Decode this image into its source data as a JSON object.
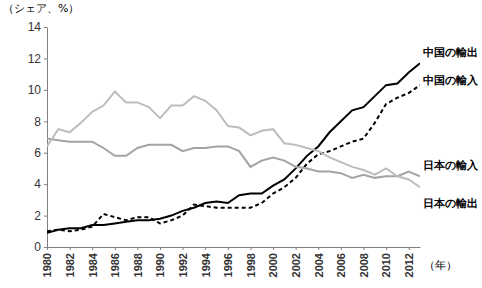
{
  "chart_data": {
    "type": "line",
    "y_label": "（シェア、%）",
    "x_label": "（年）",
    "x": [
      1980,
      1981,
      1982,
      1983,
      1984,
      1985,
      1986,
      1987,
      1988,
      1989,
      1990,
      1991,
      1992,
      1993,
      1994,
      1995,
      1996,
      1997,
      1998,
      1999,
      2000,
      2001,
      2002,
      2003,
      2004,
      2005,
      2006,
      2007,
      2008,
      2009,
      2010,
      2011,
      2012,
      2013
    ],
    "xlim": [
      1980,
      2013
    ],
    "xticks": [
      1980,
      1982,
      1984,
      1986,
      1988,
      1990,
      1992,
      1994,
      1996,
      1998,
      2000,
      2002,
      2004,
      2006,
      2008,
      2010,
      2012
    ],
    "ylim": [
      0,
      14
    ],
    "yticks": [
      0,
      2,
      4,
      6,
      8,
      10,
      12,
      14
    ],
    "grid": false,
    "series": [
      {
        "name": "中国の輸出",
        "color": "#000000",
        "line_style": "solid",
        "values": [
          0.9,
          1.1,
          1.2,
          1.2,
          1.4,
          1.4,
          1.5,
          1.6,
          1.7,
          1.7,
          1.8,
          2.0,
          2.3,
          2.5,
          2.8,
          2.9,
          2.8,
          3.3,
          3.4,
          3.4,
          3.9,
          4.3,
          5.0,
          5.8,
          6.4,
          7.3,
          8.0,
          8.7,
          8.9,
          9.6,
          10.3,
          10.4,
          11.1,
          11.7
        ]
      },
      {
        "name": "中国の輸入",
        "color": "#000000",
        "line_style": "dashed",
        "values": [
          1.0,
          1.1,
          1.0,
          1.1,
          1.3,
          2.1,
          1.9,
          1.7,
          1.9,
          1.9,
          1.5,
          1.7,
          2.0,
          2.7,
          2.6,
          2.5,
          2.5,
          2.5,
          2.5,
          2.8,
          3.4,
          3.8,
          4.4,
          5.3,
          5.9,
          6.1,
          6.4,
          6.7,
          6.9,
          7.9,
          9.1,
          9.5,
          9.8,
          10.3
        ]
      },
      {
        "name": "日本の輸入",
        "color": "#a3a3a3",
        "line_style": "solid",
        "values": [
          6.9,
          6.8,
          6.7,
          6.7,
          6.7,
          6.3,
          5.8,
          5.8,
          6.3,
          6.5,
          6.5,
          6.5,
          6.1,
          6.3,
          6.3,
          6.4,
          6.4,
          6.1,
          5.1,
          5.5,
          5.7,
          5.5,
          5.1,
          5.0,
          4.8,
          4.8,
          4.7,
          4.4,
          4.6,
          4.4,
          4.5,
          4.5,
          4.8,
          4.5
        ]
      },
      {
        "name": "日本の輸出",
        "color": "#bdbdbd",
        "line_style": "solid",
        "values": [
          6.4,
          7.5,
          7.3,
          7.9,
          8.6,
          9.0,
          9.9,
          9.2,
          9.2,
          8.9,
          8.2,
          9.0,
          9.0,
          9.6,
          9.3,
          8.7,
          7.7,
          7.6,
          7.1,
          7.4,
          7.5,
          6.6,
          6.5,
          6.3,
          6.1,
          5.7,
          5.4,
          5.1,
          4.9,
          4.6,
          5.0,
          4.5,
          4.3,
          3.8
        ]
      }
    ]
  }
}
